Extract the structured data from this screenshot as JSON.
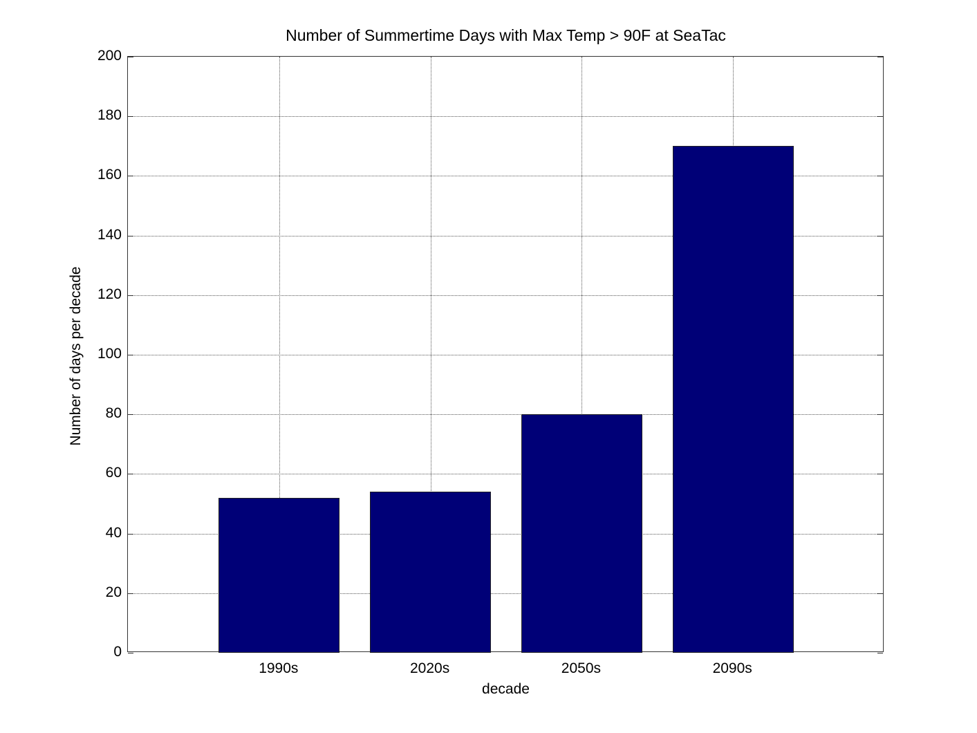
{
  "chart_data": {
    "type": "bar",
    "title": "Number of Summertime Days with Max Temp > 90F at SeaTac",
    "xlabel": "decade",
    "ylabel": "Number of days per decade",
    "categories": [
      "1990s",
      "2020s",
      "2050s",
      "2090s"
    ],
    "values": [
      52,
      54,
      80,
      170
    ],
    "ylim": [
      0,
      200
    ],
    "yticks": [
      0,
      20,
      40,
      60,
      80,
      100,
      120,
      140,
      160,
      180,
      200
    ],
    "grid": true,
    "bar_color": "#000077"
  }
}
